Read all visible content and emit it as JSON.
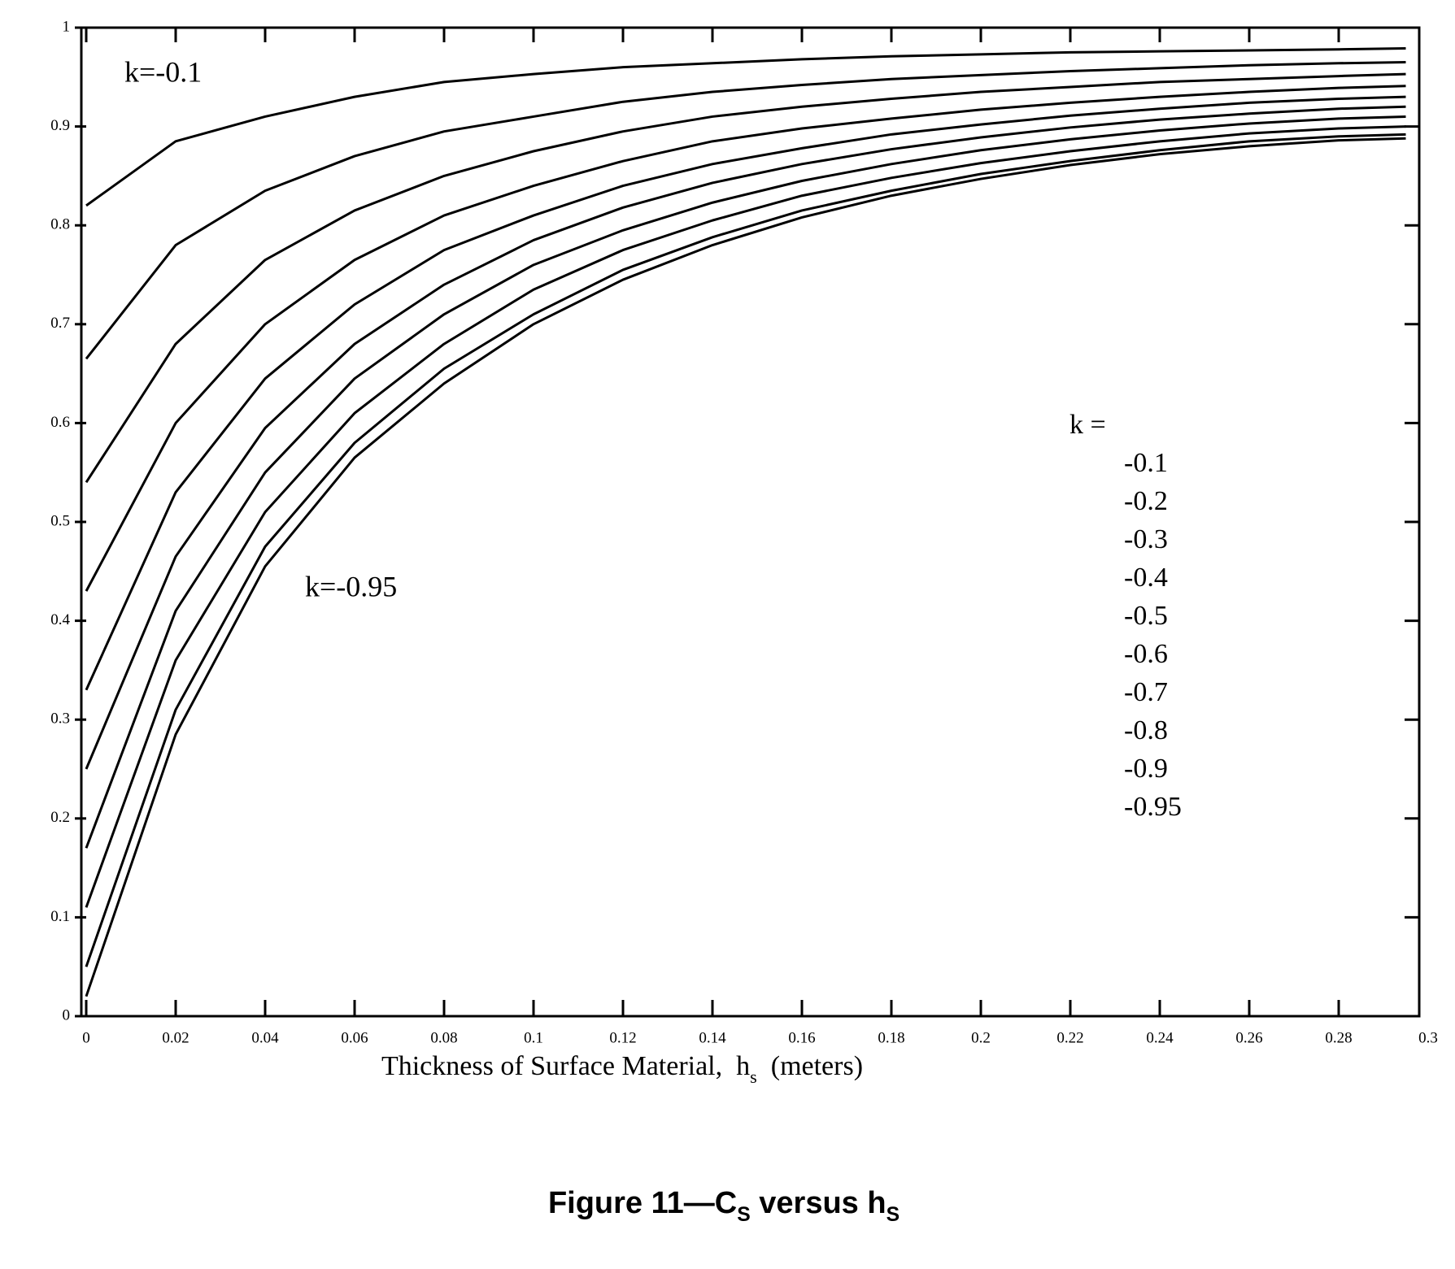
{
  "chart_data": {
    "type": "line",
    "x_label": [
      "Thickness of Surface Material,  h",
      "s",
      "  (meters)"
    ],
    "caption": [
      "Figure 11—C",
      "S",
      " versus h",
      "S"
    ],
    "legend_title": "k =",
    "annotations": [
      "k=-0.1",
      "k=-0.95"
    ],
    "x": [
      0,
      0.02,
      0.04,
      0.06,
      0.08,
      0.1,
      0.12,
      0.14,
      0.16,
      0.18,
      0.2,
      0.22,
      0.24,
      0.26,
      0.28,
      0.295
    ],
    "series": [
      {
        "name": "-0.1",
        "color": "#000000",
        "values": [
          0.82,
          0.885,
          0.91,
          0.93,
          0.945,
          0.953,
          0.96,
          0.964,
          0.968,
          0.971,
          0.973,
          0.975,
          0.976,
          0.977,
          0.978,
          0.979
        ]
      },
      {
        "name": "-0.2",
        "color": "#000000",
        "values": [
          0.665,
          0.78,
          0.835,
          0.87,
          0.895,
          0.91,
          0.925,
          0.935,
          0.942,
          0.948,
          0.952,
          0.956,
          0.959,
          0.962,
          0.964,
          0.965
        ]
      },
      {
        "name": "-0.3",
        "color": "#000000",
        "values": [
          0.54,
          0.68,
          0.765,
          0.815,
          0.85,
          0.875,
          0.895,
          0.91,
          0.92,
          0.928,
          0.935,
          0.94,
          0.945,
          0.948,
          0.951,
          0.953
        ]
      },
      {
        "name": "-0.4",
        "color": "#000000",
        "values": [
          0.43,
          0.6,
          0.7,
          0.765,
          0.81,
          0.84,
          0.865,
          0.885,
          0.898,
          0.908,
          0.917,
          0.924,
          0.93,
          0.935,
          0.939,
          0.941
        ]
      },
      {
        "name": "-0.5",
        "color": "#000000",
        "values": [
          0.33,
          0.53,
          0.645,
          0.72,
          0.775,
          0.81,
          0.84,
          0.862,
          0.878,
          0.892,
          0.902,
          0.911,
          0.918,
          0.924,
          0.928,
          0.93
        ]
      },
      {
        "name": "-0.6",
        "color": "#000000",
        "values": [
          0.25,
          0.465,
          0.595,
          0.68,
          0.74,
          0.785,
          0.818,
          0.843,
          0.862,
          0.877,
          0.889,
          0.899,
          0.907,
          0.913,
          0.918,
          0.92
        ]
      },
      {
        "name": "-0.7",
        "color": "#000000",
        "values": [
          0.17,
          0.41,
          0.55,
          0.645,
          0.71,
          0.76,
          0.795,
          0.823,
          0.845,
          0.862,
          0.876,
          0.887,
          0.896,
          0.903,
          0.908,
          0.91
        ]
      },
      {
        "name": "-0.8",
        "color": "#000000",
        "values": [
          0.11,
          0.36,
          0.51,
          0.61,
          0.68,
          0.735,
          0.775,
          0.805,
          0.83,
          0.848,
          0.863,
          0.875,
          0.885,
          0.893,
          0.898,
          0.9
        ]
      },
      {
        "name": "-0.9",
        "color": "#000000",
        "values": [
          0.05,
          0.31,
          0.475,
          0.58,
          0.655,
          0.71,
          0.755,
          0.788,
          0.815,
          0.835,
          0.852,
          0.865,
          0.876,
          0.885,
          0.89,
          0.892
        ]
      },
      {
        "name": "-0.95",
        "color": "#000000",
        "values": [
          0.02,
          0.285,
          0.455,
          0.565,
          0.64,
          0.7,
          0.745,
          0.78,
          0.808,
          0.83,
          0.847,
          0.861,
          0.872,
          0.88,
          0.886,
          0.888
        ]
      }
    ],
    "xlim": [
      0,
      0.3
    ],
    "ylim": [
      0,
      1
    ],
    "xticks": [
      0,
      0.02,
      0.04,
      0.06,
      0.08,
      0.1,
      0.12,
      0.14,
      0.16,
      0.18,
      0.2,
      0.22,
      0.24,
      0.26,
      0.28,
      0.3
    ],
    "yticks": [
      0,
      0.1,
      0.2,
      0.3,
      0.4,
      0.5,
      0.6,
      0.7,
      0.8,
      0.9,
      1
    ],
    "grid": false
  }
}
